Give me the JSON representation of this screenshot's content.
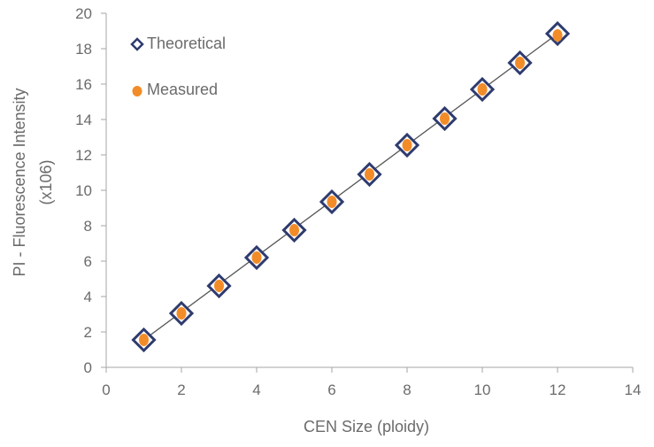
{
  "chart_data": {
    "type": "scatter",
    "xlabel": "CEN Size (ploidy)",
    "ylabel": [
      "PI - Fluorescence Intensity",
      "(x106)"
    ],
    "xlim": [
      0,
      14
    ],
    "ylim": [
      0,
      20
    ],
    "xticks": [
      0,
      2,
      4,
      6,
      8,
      10,
      12,
      14
    ],
    "yticks": [
      0,
      2,
      4,
      6,
      8,
      10,
      12,
      14,
      16,
      18,
      20
    ],
    "grid": false,
    "legend_position": "top-left",
    "trendline": {
      "from": [
        1,
        1.55
      ],
      "to": [
        12,
        18.85
      ]
    },
    "series": [
      {
        "name": "Theoretical",
        "marker": "diamond-outline",
        "color": "#2e3b6e",
        "x": [
          1,
          2,
          3,
          4,
          5,
          6,
          7,
          8,
          9,
          10,
          11,
          12
        ],
        "y": [
          1.55,
          3.05,
          4.6,
          6.2,
          7.75,
          9.35,
          10.9,
          12.55,
          14.05,
          15.7,
          17.2,
          18.85
        ]
      },
      {
        "name": "Measured",
        "marker": "circle-filled",
        "color": "#f28c28",
        "x": [
          1,
          2,
          3,
          4,
          5,
          6,
          7,
          8,
          9,
          10,
          11,
          12
        ],
        "y": [
          1.55,
          3.05,
          4.6,
          6.2,
          7.75,
          9.35,
          10.9,
          12.55,
          14.05,
          15.7,
          17.2,
          18.75
        ]
      }
    ]
  }
}
